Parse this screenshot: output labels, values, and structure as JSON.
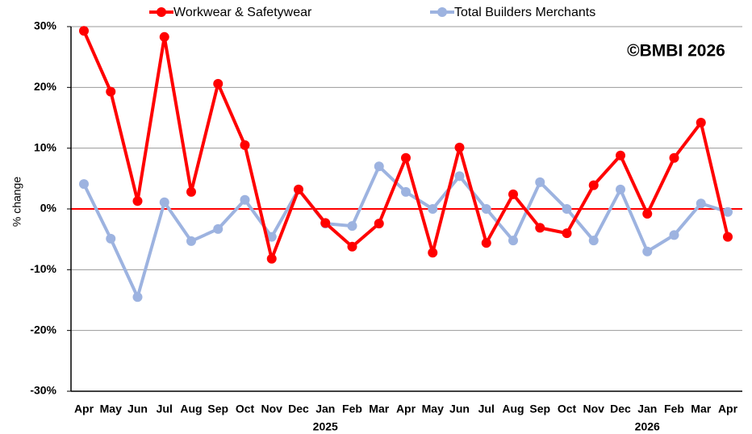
{
  "chart_data": {
    "type": "line",
    "watermark": "©BMBI 2026",
    "y_label": "% change",
    "categories": [
      "Apr",
      "May",
      "Jun",
      "Jul",
      "Aug",
      "Sep",
      "Oct",
      "Nov",
      "Dec",
      "Jan",
      "Feb",
      "Mar",
      "Apr",
      "May",
      "Jun",
      "Jul",
      "Aug",
      "Sep",
      "Oct",
      "Nov",
      "Dec",
      "Jan",
      "Feb",
      "Mar",
      "Apr"
    ],
    "year_labels": [
      "2025",
      "2026"
    ],
    "series": [
      {
        "name": "Workwear & Safetywear",
        "color": "#ff0000",
        "values": [
          29.3,
          19.3,
          1.3,
          28.3,
          2.8,
          20.6,
          10.5,
          -8.2,
          3.2,
          -2.3,
          -6.2,
          -2.4,
          8.4,
          -7.2,
          10.1,
          -5.6,
          2.4,
          -3.1,
          -4.0,
          3.9,
          8.8,
          -0.8,
          8.4,
          14.2,
          -4.6
        ]
      },
      {
        "name": "Total Builders Merchants",
        "color": "#9db3e0",
        "values": [
          4.1,
          -4.9,
          -14.5,
          1.1,
          -5.3,
          -3.3,
          1.5,
          -4.6,
          3.2,
          -2.4,
          -2.8,
          7.0,
          2.8,
          0,
          5.4,
          0,
          -5.2,
          4.4,
          0,
          -5.2,
          3.2,
          -7.0,
          -4.3,
          0.9,
          -0.5
        ]
      }
    ],
    "ylim": [
      -30,
      30
    ],
    "yticks": [
      {
        "value": -30,
        "label": "-30%"
      },
      {
        "value": -20,
        "label": "-20%"
      },
      {
        "value": -10,
        "label": "-10%"
      },
      {
        "value": 0,
        "label": "0%"
      },
      {
        "value": 10,
        "label": "10%"
      },
      {
        "value": 20,
        "label": "20%"
      },
      {
        "value": 30,
        "label": "30%"
      }
    ],
    "grid": true,
    "zero_line_color": "#ff0000",
    "legend": "top"
  }
}
